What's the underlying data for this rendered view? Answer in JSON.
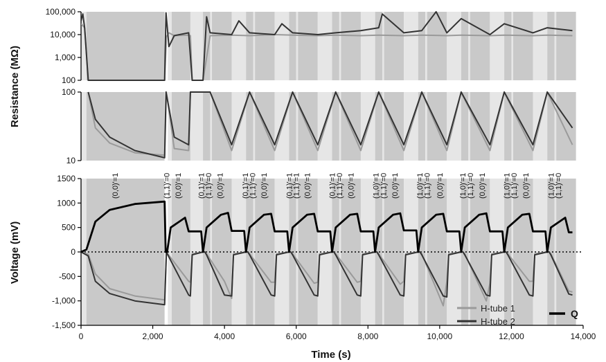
{
  "chart_data": [
    {
      "type": "line",
      "panel": "resistance-upper",
      "ylabel": "Resistance (MΩ)",
      "y_scale": "log",
      "ylim": [
        100,
        100000
      ],
      "y_ticks": [
        "100,000",
        "10,000",
        "1,000",
        "100"
      ],
      "y_tick_values": [
        100000,
        10000,
        1000,
        100
      ],
      "series": [
        {
          "name": "H-tube 1",
          "color": "#9a9a9a",
          "x": [
            0,
            100,
            200,
            2330,
            2380,
            2450,
            2600,
            3000,
            3050,
            3100,
            3400,
            3600,
            4200,
            4700,
            5400,
            5900,
            6600,
            7100,
            7800,
            8300,
            9000,
            9500,
            10200,
            10600,
            11400,
            11800,
            12600,
            13000,
            13700
          ],
          "y": [
            30000,
            20000,
            100,
            100,
            8000,
            12000,
            9000,
            9500,
            9000,
            100,
            100,
            9000,
            9500,
            9000,
            10000,
            9500,
            9000,
            9500,
            9000,
            9500,
            9000,
            9500,
            9000,
            9500,
            9000,
            9500,
            9000,
            9500,
            9000
          ]
        },
        {
          "name": "H-tube 2",
          "color": "#333333",
          "x": [
            0,
            50,
            100,
            200,
            2330,
            2370,
            2450,
            2600,
            3000,
            3100,
            3400,
            3500,
            3600,
            4200,
            4400,
            4700,
            5400,
            5600,
            5900,
            6600,
            7100,
            7800,
            8300,
            8400,
            9000,
            9500,
            9900,
            10200,
            10600,
            11400,
            11800,
            12600,
            13000,
            13700
          ],
          "y": [
            40000,
            80000,
            20000,
            100,
            100,
            90000,
            3000,
            9000,
            12000,
            100,
            100,
            60000,
            12000,
            10000,
            40000,
            12000,
            10000,
            30000,
            12000,
            10000,
            12000,
            15000,
            20000,
            80000,
            12000,
            15000,
            100000,
            12000,
            50000,
            10000,
            30000,
            12000,
            20000,
            15000
          ]
        }
      ]
    },
    {
      "type": "line",
      "panel": "resistance-lower",
      "y_scale": "log",
      "ylim": [
        10,
        100
      ],
      "y_ticks": [
        "100",
        "10"
      ],
      "y_tick_values": [
        100,
        10
      ],
      "series": [
        {
          "name": "H-tube 1",
          "color": "#9a9a9a",
          "x": [
            200,
            400,
            800,
            1500,
            2330,
            2380,
            2600,
            3000,
            3050,
            3600,
            4200,
            4700,
            5400,
            5900,
            6600,
            7100,
            7800,
            8300,
            9000,
            9500,
            10200,
            10600,
            11400,
            11800,
            12600,
            13000,
            13700
          ],
          "y": [
            100,
            30,
            18,
            13,
            12,
            100,
            15,
            14,
            100,
            100,
            14,
            100,
            14,
            100,
            14,
            100,
            14,
            100,
            14,
            100,
            14,
            100,
            14,
            100,
            14,
            100,
            17
          ]
        },
        {
          "name": "H-tube 2",
          "color": "#333333",
          "x": [
            200,
            400,
            800,
            1500,
            2330,
            2370,
            2600,
            3000,
            3050,
            3600,
            4200,
            4700,
            5400,
            5900,
            6600,
            7100,
            7800,
            8300,
            9000,
            9500,
            10200,
            10600,
            11400,
            11800,
            12600,
            13000,
            13700
          ],
          "y": [
            100,
            40,
            22,
            14,
            11,
            100,
            22,
            17,
            100,
            100,
            17,
            100,
            17,
            100,
            17,
            100,
            17,
            100,
            17,
            100,
            17,
            100,
            17,
            100,
            17,
            100,
            30
          ]
        }
      ]
    },
    {
      "type": "line",
      "panel": "voltage",
      "xlabel": "Time (s)",
      "ylabel": "Voltage  (mV)",
      "xlim": [
        0,
        14000
      ],
      "ylim": [
        -1500,
        1500
      ],
      "x_ticks": [
        "0",
        "2,000",
        "4,000",
        "6,000",
        "8,000",
        "10,000",
        "12,000",
        "14,000"
      ],
      "x_tick_values": [
        0,
        2000,
        4000,
        6000,
        8000,
        10000,
        12000,
        14000
      ],
      "y_ticks": [
        "1500",
        "1000",
        "500",
        "0",
        "-500",
        "-1,000",
        "-1,500"
      ],
      "y_tick_values": [
        1500,
        1000,
        500,
        0,
        -500,
        -1000,
        -1500
      ],
      "series": [
        {
          "name": "H-tube 1",
          "color": "#9a9a9a",
          "x": [
            0,
            200,
            400,
            800,
            1500,
            2330,
            2380,
            2420,
            3000,
            3050,
            3100,
            3400,
            3450,
            3500,
            4000,
            4200,
            4250,
            4600,
            4650,
            4700,
            5300,
            5400,
            5450,
            5800,
            5850,
            5900,
            6500,
            6600,
            6650,
            7000,
            7050,
            7100,
            7700,
            7800,
            7850,
            8200,
            8250,
            8300,
            8900,
            9000,
            9050,
            9400,
            9450,
            9500,
            10100,
            10200,
            10250,
            10600,
            10650,
            10700,
            11300,
            11400,
            11450,
            11800,
            11850,
            11900,
            12500,
            12600,
            12650,
            13000,
            13050,
            13100,
            13600,
            13700
          ],
          "y": [
            0,
            -50,
            -450,
            -750,
            -900,
            -980,
            0,
            -40,
            -600,
            -620,
            -40,
            0,
            0,
            -40,
            -600,
            -950,
            -40,
            0,
            0,
            -40,
            -620,
            -620,
            -40,
            0,
            0,
            -40,
            -640,
            -620,
            -40,
            0,
            0,
            -40,
            -620,
            -600,
            -40,
            0,
            0,
            -40,
            -660,
            -600,
            -40,
            0,
            0,
            -40,
            -1100,
            -600,
            -40,
            0,
            0,
            -40,
            -1000,
            -640,
            -40,
            0,
            0,
            -40,
            -600,
            -600,
            -40,
            0,
            0,
            -40,
            -800,
            -820
          ]
        },
        {
          "name": "H-tube 2",
          "color": "#333333",
          "x": [
            0,
            200,
            400,
            800,
            1500,
            2330,
            2380,
            2420,
            3000,
            3050,
            3100,
            3400,
            3450,
            3500,
            4000,
            4200,
            4250,
            4600,
            4650,
            4700,
            5300,
            5400,
            5450,
            5800,
            5850,
            5900,
            6500,
            6600,
            6650,
            7000,
            7050,
            7100,
            7700,
            7800,
            7850,
            8200,
            8250,
            8300,
            8900,
            9000,
            9050,
            9400,
            9450,
            9500,
            10100,
            10200,
            10250,
            10600,
            10650,
            10700,
            11300,
            11400,
            11450,
            11800,
            11850,
            11900,
            12500,
            12600,
            12650,
            13000,
            13050,
            13100,
            13600,
            13700
          ],
          "y": [
            0,
            -80,
            -600,
            -850,
            -1000,
            -1080,
            0,
            -60,
            -880,
            -900,
            -60,
            0,
            0,
            -60,
            -880,
            -900,
            -60,
            0,
            0,
            -60,
            -880,
            -900,
            -60,
            0,
            0,
            -60,
            -880,
            -900,
            -60,
            0,
            0,
            -60,
            -880,
            -900,
            -60,
            0,
            0,
            -60,
            -880,
            -900,
            -60,
            0,
            0,
            -60,
            -900,
            -920,
            -60,
            0,
            0,
            -60,
            -880,
            -900,
            -60,
            0,
            0,
            -60,
            -880,
            -900,
            -60,
            0,
            0,
            -60,
            -860,
            -880
          ]
        },
        {
          "name": "Q",
          "color": "#000000",
          "x": [
            0,
            150,
            400,
            800,
            1500,
            2330,
            2360,
            2400,
            2500,
            2900,
            3000,
            3100,
            3350,
            3400,
            3500,
            3900,
            4100,
            4200,
            4300,
            4550,
            4600,
            4700,
            5100,
            5300,
            5400,
            5500,
            5750,
            5800,
            5900,
            6300,
            6500,
            6600,
            6700,
            6950,
            7000,
            7100,
            7500,
            7700,
            7800,
            7900,
            8150,
            8200,
            8300,
            8700,
            8900,
            9000,
            9100,
            9350,
            9400,
            9500,
            9900,
            10100,
            10200,
            10300,
            10550,
            10600,
            10700,
            11100,
            11300,
            11400,
            11500,
            11750,
            11800,
            11900,
            12300,
            12500,
            12600,
            12700,
            12950,
            13000,
            13100,
            13500,
            13600,
            13700
          ],
          "y": [
            0,
            50,
            620,
            860,
            980,
            1030,
            0,
            0,
            500,
            700,
            420,
            420,
            420,
            0,
            500,
            760,
            800,
            430,
            430,
            430,
            0,
            500,
            760,
            780,
            420,
            420,
            420,
            0,
            500,
            760,
            780,
            420,
            420,
            420,
            0,
            500,
            760,
            780,
            420,
            420,
            420,
            0,
            500,
            760,
            790,
            440,
            440,
            440,
            0,
            500,
            760,
            780,
            420,
            420,
            420,
            0,
            500,
            760,
            790,
            420,
            420,
            420,
            0,
            500,
            760,
            780,
            420,
            420,
            420,
            0,
            500,
            700,
            400,
            400
          ]
        }
      ]
    }
  ],
  "state_labels": [
    {
      "text": "(0,0)'=1",
      "t": 950
    },
    {
      "text": "(1,1)'=0",
      "t": 2380
    },
    {
      "text": "(0,0)'=1",
      "t": 2700
    },
    {
      "text": "(0,1)'=1",
      "t": 3350
    },
    {
      "text": "(1,1)'=0",
      "t": 3550
    },
    {
      "text": "(0,0)'=1",
      "t": 3870
    },
    {
      "text": "(0,1)'=1",
      "t": 4580
    },
    {
      "text": "(1,1)'=0",
      "t": 4780
    },
    {
      "text": "(0,0)'=1",
      "t": 5100
    },
    {
      "text": "(0,1)'=1",
      "t": 5800
    },
    {
      "text": "(1,1)'=1",
      "t": 6000
    },
    {
      "text": "(0,0)'=1",
      "t": 6300
    },
    {
      "text": "(0,1)'=1",
      "t": 7000
    },
    {
      "text": "(1,1)'=0",
      "t": 7200
    },
    {
      "text": "(0,0)'=1",
      "t": 7520
    },
    {
      "text": "(1,0)'=1",
      "t": 8220
    },
    {
      "text": "(1,1)'=0",
      "t": 8430
    },
    {
      "text": "(0,0)'=1",
      "t": 8750
    },
    {
      "text": "(1,0)'=1",
      "t": 9440
    },
    {
      "text": "(1,1)'=0",
      "t": 9650
    },
    {
      "text": "(0,0)'=1",
      "t": 10000
    },
    {
      "text": "(1,0)'=1",
      "t": 10640
    },
    {
      "text": "(1,1)'=0",
      "t": 10850
    },
    {
      "text": "(0,0)'=1",
      "t": 11180
    },
    {
      "text": "(1,0)'=1",
      "t": 11870
    },
    {
      "text": "(1,1)'=0",
      "t": 12070
    },
    {
      "text": "(0,0)'=1",
      "t": 12400
    },
    {
      "text": "(1,0)'=1",
      "t": 13100
    },
    {
      "text": "(1,1)'=0",
      "t": 13300
    }
  ],
  "bands": [
    {
      "x0": 0,
      "x1": 150,
      "tone": "light"
    },
    {
      "x0": 150,
      "x1": 2330,
      "tone": "mid"
    },
    {
      "x0": 2420,
      "x1": 2530,
      "tone": "light"
    },
    {
      "x0": 2530,
      "x1": 3050,
      "tone": "mid"
    },
    {
      "x0": 3050,
      "x1": 3400,
      "tone": "light"
    },
    {
      "x0": 3400,
      "x1": 3600,
      "tone": "mid"
    },
    {
      "x0": 3600,
      "x1": 3650,
      "tone": "light"
    },
    {
      "x0": 3650,
      "x1": 4200,
      "tone": "mid"
    },
    {
      "x0": 4200,
      "x1": 4600,
      "tone": "light"
    },
    {
      "x0": 4600,
      "x1": 4800,
      "tone": "mid"
    },
    {
      "x0": 4800,
      "x1": 4850,
      "tone": "light"
    },
    {
      "x0": 4850,
      "x1": 5400,
      "tone": "mid"
    },
    {
      "x0": 5400,
      "x1": 5800,
      "tone": "light"
    },
    {
      "x0": 5800,
      "x1": 6000,
      "tone": "mid"
    },
    {
      "x0": 6000,
      "x1": 6050,
      "tone": "light"
    },
    {
      "x0": 6050,
      "x1": 6600,
      "tone": "mid"
    },
    {
      "x0": 6600,
      "x1": 7000,
      "tone": "light"
    },
    {
      "x0": 7000,
      "x1": 7200,
      "tone": "mid"
    },
    {
      "x0": 7200,
      "x1": 7250,
      "tone": "light"
    },
    {
      "x0": 7250,
      "x1": 7800,
      "tone": "mid"
    },
    {
      "x0": 7800,
      "x1": 8200,
      "tone": "light"
    },
    {
      "x0": 8200,
      "x1": 8400,
      "tone": "mid"
    },
    {
      "x0": 8400,
      "x1": 8450,
      "tone": "light"
    },
    {
      "x0": 8450,
      "x1": 9000,
      "tone": "mid"
    },
    {
      "x0": 9000,
      "x1": 9400,
      "tone": "light"
    },
    {
      "x0": 9400,
      "x1": 9600,
      "tone": "mid"
    },
    {
      "x0": 9600,
      "x1": 9650,
      "tone": "light"
    },
    {
      "x0": 9650,
      "x1": 10200,
      "tone": "mid"
    },
    {
      "x0": 10200,
      "x1": 10600,
      "tone": "light"
    },
    {
      "x0": 10600,
      "x1": 10800,
      "tone": "mid"
    },
    {
      "x0": 10800,
      "x1": 10850,
      "tone": "light"
    },
    {
      "x0": 10850,
      "x1": 11400,
      "tone": "mid"
    },
    {
      "x0": 11400,
      "x1": 11800,
      "tone": "light"
    },
    {
      "x0": 11800,
      "x1": 12000,
      "tone": "mid"
    },
    {
      "x0": 12000,
      "x1": 12050,
      "tone": "light"
    },
    {
      "x0": 12050,
      "x1": 12600,
      "tone": "mid"
    },
    {
      "x0": 12600,
      "x1": 13000,
      "tone": "light"
    },
    {
      "x0": 13000,
      "x1": 13200,
      "tone": "mid"
    },
    {
      "x0": 13200,
      "x1": 13250,
      "tone": "light"
    },
    {
      "x0": 13250,
      "x1": 13800,
      "tone": "mid"
    }
  ],
  "band_colors": {
    "light": "#e6e6e6",
    "mid": "#c9c9c9"
  },
  "legend": {
    "tube1": "H-tube 1",
    "tube2": "H-tube 2",
    "q": "Q"
  },
  "labels": {
    "resistance_title": "Resistance (MΩ)",
    "voltage_title": "Voltage  (mV)",
    "time_title": "Time (s)"
  }
}
